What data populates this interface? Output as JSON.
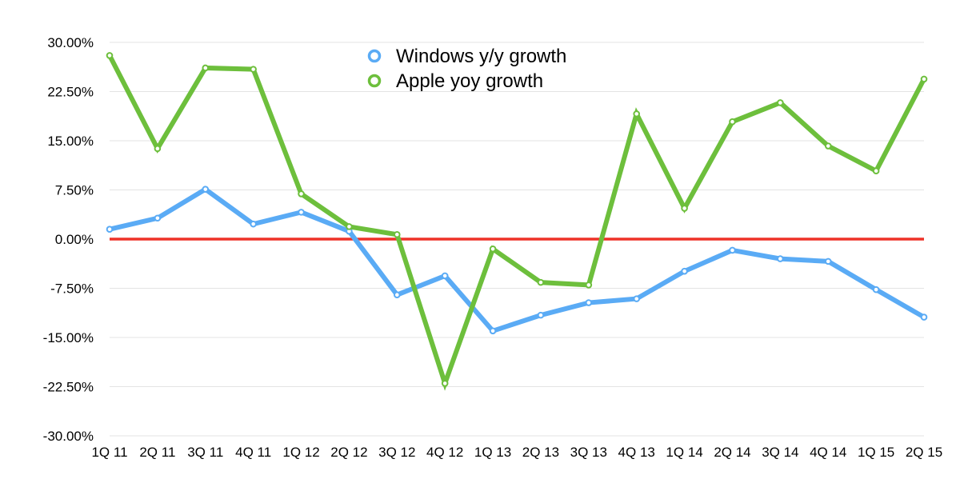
{
  "chart_data": {
    "type": "line",
    "title": "",
    "xlabel": "",
    "ylabel": "",
    "ylim": [
      -30,
      30
    ],
    "y_ticks": [
      30,
      22.5,
      15,
      7.5,
      0,
      -7.5,
      -15,
      -22.5,
      -30
    ],
    "y_tick_labels": [
      "30.00%",
      "22.50%",
      "15.00%",
      "7.50%",
      "0.00%",
      "-7.50%",
      "-15.00%",
      "-22.50%",
      "-30.00%"
    ],
    "grid": true,
    "legend_position": "top-center",
    "categories": [
      "1Q 11",
      "2Q 11",
      "3Q 11",
      "4Q 11",
      "1Q 12",
      "2Q 12",
      "3Q 12",
      "4Q 12",
      "1Q 13",
      "2Q 13",
      "3Q 13",
      "4Q 13",
      "1Q 14",
      "2Q 14",
      "3Q 14",
      "4Q 14",
      "1Q 15",
      "2Q 15"
    ],
    "series": [
      {
        "name": "Windows y/y growth",
        "color": "#5aabf5",
        "values": [
          1.5,
          3.2,
          7.6,
          2.3,
          4.1,
          1.2,
          -8.5,
          -5.6,
          -14.0,
          -11.6,
          -9.7,
          -9.1,
          -4.9,
          -1.7,
          -3.0,
          -3.4,
          -7.7,
          -11.9
        ]
      },
      {
        "name": "Apple yoy growth",
        "color": "#6dbf3c",
        "values": [
          28.0,
          13.8,
          26.1,
          25.9,
          6.9,
          1.9,
          0.7,
          -22.0,
          -1.5,
          -6.6,
          -7.0,
          19.1,
          4.7,
          17.9,
          20.8,
          14.2,
          10.4,
          24.4
        ]
      }
    ],
    "reference_line": {
      "value": 0,
      "color": "#ee3228"
    }
  }
}
